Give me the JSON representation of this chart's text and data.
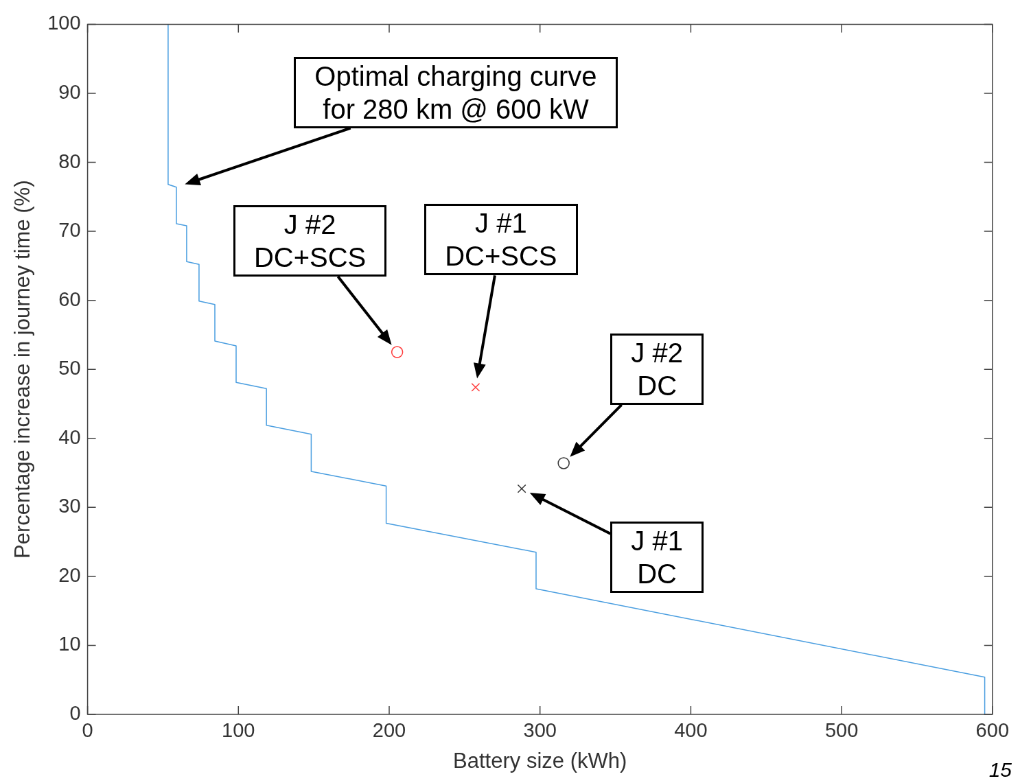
{
  "chart_data": {
    "type": "line",
    "xlabel": "Battery size (kWh)",
    "ylabel": "Percentage increase in journey time (%)",
    "xlim": [
      0,
      600
    ],
    "xticks": [
      0,
      100,
      200,
      300,
      400,
      500,
      600
    ],
    "ylim": [
      0,
      100
    ],
    "yticks": [
      0,
      10,
      20,
      30,
      40,
      50,
      60,
      70,
      80,
      90,
      100
    ],
    "grid": false,
    "legend": false,
    "series": [
      {
        "type": "line",
        "color": "#4a9ee0",
        "marker": "none",
        "x": [
          53.4,
          53.4,
          58.9,
          58.9,
          65.7,
          65.7,
          73.9,
          73.9,
          84.4,
          84.4,
          98.5,
          98.5,
          118.6,
          118.6,
          148.3,
          148.3,
          198,
          198,
          297.4,
          297.4,
          594.9,
          594.9
        ],
        "values": [
          100,
          76.8,
          76.4,
          71.1,
          70.8,
          65.6,
          65.2,
          59.9,
          59.4,
          54.1,
          53.4,
          48.1,
          47.2,
          41.9,
          40.6,
          35.2,
          33.1,
          27.7,
          23.5,
          18.2,
          5.4,
          0
        ]
      },
      {
        "type": "scatter",
        "color": "#ff3b3b",
        "marker": "circle",
        "x": [
          205.3
        ],
        "values": [
          52.5
        ]
      },
      {
        "type": "scatter",
        "color": "#ff3b3b",
        "marker": "cross",
        "x": [
          257.3
        ],
        "values": [
          47.4
        ]
      },
      {
        "type": "scatter",
        "color": "#333333",
        "marker": "circle",
        "x": [
          315.7
        ],
        "values": [
          36.4
        ]
      },
      {
        "type": "scatter",
        "color": "#333333",
        "marker": "cross",
        "x": [
          287.9
        ],
        "values": [
          32.7
        ]
      }
    ],
    "annotations": [
      "Optimal charging curve\nfor 280 km @ 600 kW",
      "J #2\nDC+SCS",
      "J #1\nDC+SCS",
      "J #2\nDC",
      "J #1\nDC",
      "15"
    ]
  }
}
